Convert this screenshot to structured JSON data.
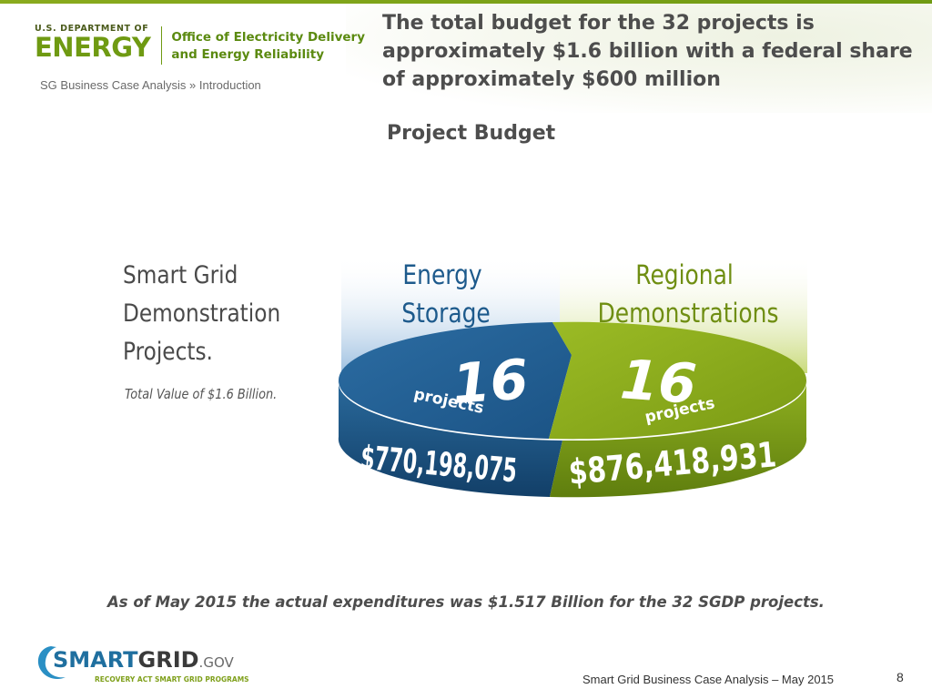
{
  "header": {
    "doe_logo": {
      "line1": "U.S. DEPARTMENT OF",
      "line2": "ENERGY",
      "office_line1": "Office of Electricity Delivery",
      "office_line2": "and Energy Reliability"
    },
    "breadcrumb": "SG Business Case Analysis » Introduction",
    "headline": "The total budget for the 32 projects is approximately $1.6 billion with a federal share of approximately $600 million"
  },
  "main": {
    "subtitle": "Project Budget",
    "figure": {
      "title_lines": [
        "Smart Grid",
        "Demonstration",
        "Projects."
      ],
      "total_text": "Total Value of $1.6 Billion.",
      "segments": [
        {
          "label_lines": [
            "Energy",
            "Storage"
          ],
          "count": "16",
          "count_unit": "projects",
          "amount": "$770,198,075",
          "color": "#1d5a8c"
        },
        {
          "label_lines": [
            "Regional",
            "Demonstrations"
          ],
          "count": "16",
          "count_unit": "projects",
          "amount": "$876,418,931",
          "color": "#7fa01b"
        }
      ]
    },
    "footnote": "As of May 2015 the actual expenditures was $1.517 Billion for the 32 SGDP projects."
  },
  "footer": {
    "sg_logo": {
      "name_a": "SMART",
      "name_b": "GRID",
      "suffix": ".GOV",
      "tagline": "RECOVERY ACT SMART GRID PROGRAMS"
    },
    "text": "Smart Grid Business Case Analysis – May 2015",
    "page_number": "8"
  },
  "colors": {
    "accent_green": "#6f9a12",
    "storage_blue": "#1d5a8c",
    "regional_green": "#7fa01b",
    "heading_gray": "#4d4d4d"
  }
}
